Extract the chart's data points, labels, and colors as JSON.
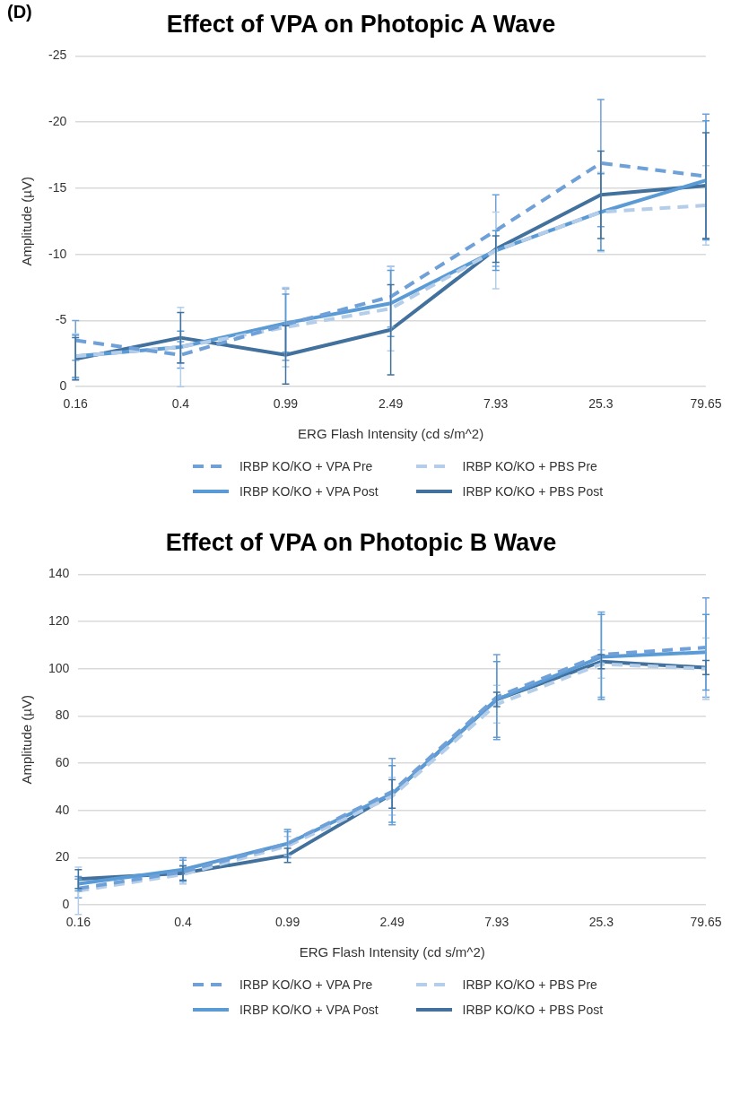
{
  "chart_data": [
    {
      "type": "line",
      "title": "Effect of VPA on Photopic A Wave",
      "annotations": [
        "(D)"
      ],
      "xlabel": "ERG Flash Intensity (cd s/m^2)",
      "ylabel": "Amplitude (µV)",
      "categories": [
        "0.16",
        "0.4",
        "0.99",
        "2.49",
        "7.93",
        "25.3",
        "79.65"
      ],
      "ylim": [
        0,
        -25
      ],
      "yticks": [
        0,
        -5,
        -10,
        -15,
        -20,
        -25
      ],
      "grid": "y",
      "legend": "bottom",
      "marker": "none",
      "series": [
        {
          "name": "IRBP KO/KO + VPA Pre",
          "color": "#6fa0d8",
          "line_style": "dashed",
          "values": [
            -3.5,
            -2.4,
            -4.7,
            -6.8,
            -11.8,
            -16.9,
            -15.9
          ],
          "errors": [
            1.5,
            1.0,
            2.7,
            2.3,
            2.7,
            4.8,
            4.7
          ]
        },
        {
          "name": "IRBP KO/KO + PBS Pre",
          "color": "#b4cde9",
          "line_style": "dashed",
          "values": [
            -2.3,
            -3.0,
            -4.5,
            -5.9,
            -10.3,
            -13.2,
            -13.7
          ],
          "errors": [
            1.7,
            3.0,
            3.0,
            3.2,
            2.9,
            3.0,
            3.0
          ]
        },
        {
          "name": "IRBP KO/KO + VPA Post",
          "color": "#5b9bd5",
          "line_style": "solid",
          "values": [
            -2.3,
            -3.0,
            -4.8,
            -6.3,
            -10.3,
            -13.2,
            -15.6
          ],
          "errors": [
            1.6,
            1.2,
            2.2,
            2.5,
            1.5,
            2.9,
            4.5
          ]
        },
        {
          "name": "IRBP KO/KO + PBS Post",
          "color": "#41719c",
          "line_style": "solid",
          "values": [
            -2.1,
            -3.7,
            -2.4,
            -4.3,
            -10.4,
            -14.5,
            -15.2
          ],
          "errors": [
            1.6,
            1.9,
            2.2,
            3.4,
            1.0,
            3.3,
            4.0
          ]
        }
      ]
    },
    {
      "type": "line",
      "title": "Effect of VPA on Photopic B Wave",
      "xlabel": "ERG Flash Intensity (cd s/m^2)",
      "ylabel": "Amplitude (µV)",
      "categories": [
        "0.16",
        "0.4",
        "0.99",
        "2.49",
        "7.93",
        "25.3",
        "79.65"
      ],
      "ylim": [
        0,
        140
      ],
      "yticks": [
        0,
        20,
        40,
        60,
        80,
        100,
        120,
        140
      ],
      "grid": "y",
      "legend": "bottom",
      "marker": "none",
      "series": [
        {
          "name": "IRBP KO/KO + VPA Pre",
          "color": "#6fa0d8",
          "line_style": "dashed",
          "values": [
            7,
            14,
            26,
            48,
            88,
            106,
            109
          ],
          "errors": [
            4,
            5,
            5,
            14,
            18,
            18,
            21
          ]
        },
        {
          "name": "IRBP KO/KO + PBS Pre",
          "color": "#b4cde9",
          "line_style": "dashed",
          "values": [
            6,
            13,
            25,
            46,
            85,
            102,
            100
          ],
          "errors": [
            10,
            4,
            4,
            8,
            8,
            6,
            13
          ]
        },
        {
          "name": "IRBP KO/KO + VPA Post",
          "color": "#5b9bd5",
          "line_style": "solid",
          "values": [
            9,
            15,
            26,
            47,
            87,
            105,
            107
          ],
          "errors": [
            3,
            5,
            6,
            12,
            16,
            18,
            16
          ]
        },
        {
          "name": "IRBP KO/KO + PBS Post",
          "color": "#41719c",
          "line_style": "solid",
          "values": [
            11,
            13.5,
            21,
            47,
            87,
            103,
            100.5
          ],
          "errors": [
            4,
            3,
            3,
            6,
            3,
            3,
            3
          ]
        }
      ]
    }
  ]
}
